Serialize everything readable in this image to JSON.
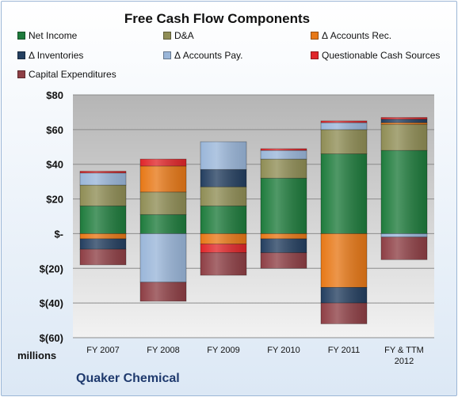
{
  "title": "Free Cash Flow Components",
  "company": "Quaker Chemical",
  "unit_label": "millions",
  "legend": [
    {
      "name": "Net Income",
      "color": "#1e7b3c"
    },
    {
      "name": "D&A",
      "color": "#8f8d55"
    },
    {
      "name": "Δ Accounts Rec.",
      "color": "#e77817"
    },
    {
      "name": "Δ Inventories",
      "color": "#243f60"
    },
    {
      "name": "Δ Accounts Pay.",
      "color": "#9ab6d9"
    },
    {
      "name": "Questionable Cash Sources",
      "color": "#e0262a"
    },
    {
      "name": "Capital Expenditures",
      "color": "#8e3f45"
    }
  ],
  "chart_data": {
    "type": "bar",
    "stacked": true,
    "title": "Free Cash Flow Components",
    "ylabel": "",
    "ylim": [
      -60,
      80
    ],
    "yticks": [
      80,
      60,
      40,
      20,
      0,
      -20,
      -40,
      -60
    ],
    "ytick_labels": [
      "$80",
      "$60",
      "$40",
      "$20",
      "$-",
      "$(20)",
      "$(40)",
      "$(60)"
    ],
    "grid": true,
    "legend_position": "top",
    "categories": [
      "FY 2007",
      "FY 2008",
      "FY 2009",
      "FY 2010",
      "FY 2011",
      "FY & TTM 2012"
    ],
    "series": [
      {
        "name": "Net Income",
        "color": "#1e7b3c",
        "values": [
          16,
          11,
          16,
          32,
          46,
          48
        ]
      },
      {
        "name": "D&A",
        "color": "#8f8d55",
        "values": [
          12,
          13,
          11,
          11,
          14,
          15
        ]
      },
      {
        "name": "Δ Accounts Rec.",
        "color": "#e77817",
        "values": [
          -3,
          15,
          -6,
          -3,
          -31,
          1
        ]
      },
      {
        "name": "Δ Inventories",
        "color": "#243f60",
        "values": [
          -6,
          0,
          10,
          -8,
          -9,
          2
        ]
      },
      {
        "name": "Δ Accounts Pay.",
        "color": "#9ab6d9",
        "values": [
          7,
          -28,
          16,
          5,
          4,
          -2
        ]
      },
      {
        "name": "Questionable Cash Sources",
        "color": "#e0262a",
        "values": [
          1,
          4,
          -5,
          1,
          1,
          1
        ]
      },
      {
        "name": "Capital Expenditures",
        "color": "#8e3f45",
        "values": [
          -9,
          -11,
          -13,
          -9,
          -12,
          -13
        ]
      }
    ]
  }
}
